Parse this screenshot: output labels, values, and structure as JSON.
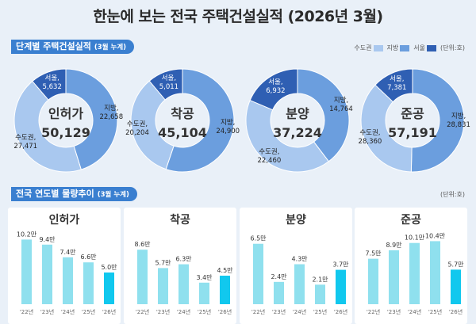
{
  "title": "한눈에 보는 전국 주택건설실적  (2026년 3월)",
  "section1": {
    "label": "단계별 주택건설실적",
    "sub": "(3월 누계)"
  },
  "section2": {
    "label": "전국 연도별 물량추이",
    "sub": "(3월 누계)"
  },
  "legend": [
    {
      "label": "수도권",
      "color": "#a9c8ef"
    },
    {
      "label": "지방",
      "color": "#6b9ede"
    },
    {
      "label": "서울",
      "color": "#2f5fb3"
    }
  ],
  "unit1": "(단위:호)",
  "unit2": "(단위:호)",
  "colors": {
    "capital": "#a9c8ef",
    "region": "#6b9ede",
    "seoul": "#2f5fb3",
    "bar": "#8fe0ee",
    "bar_last": "#11c8ee"
  },
  "chart_data": [
    {
      "type": "pie",
      "title": "인허가",
      "total": "50,129",
      "slices": [
        {
          "name": "수도권",
          "value": 27471,
          "label": "27,471"
        },
        {
          "name": "지방",
          "value": 22658,
          "label": "22,658"
        },
        {
          "name": "서울",
          "value": 5632,
          "label": "5,632"
        }
      ]
    },
    {
      "type": "pie",
      "title": "착공",
      "total": "45,104",
      "slices": [
        {
          "name": "수도권",
          "value": 20204,
          "label": "20,204"
        },
        {
          "name": "지방",
          "value": 24900,
          "label": "24,900"
        },
        {
          "name": "서울",
          "value": 5011,
          "label": "5,011"
        }
      ]
    },
    {
      "type": "pie",
      "title": "분양",
      "total": "37,224",
      "slices": [
        {
          "name": "수도권",
          "value": 22460,
          "label": "22,460"
        },
        {
          "name": "지방",
          "value": 14764,
          "label": "14,764"
        },
        {
          "name": "서울",
          "value": 6932,
          "label": "6,932"
        }
      ]
    },
    {
      "type": "pie",
      "title": "준공",
      "total": "57,191",
      "slices": [
        {
          "name": "수도권",
          "value": 28360,
          "label": "28,360"
        },
        {
          "name": "지방",
          "value": 28831,
          "label": "28,831"
        },
        {
          "name": "서울",
          "value": 7381,
          "label": "7,381"
        }
      ]
    },
    {
      "type": "bar",
      "title": "인허가",
      "categories": [
        "'22년",
        "'23년",
        "'24년",
        "'25년",
        "'26년"
      ],
      "values": [
        10.2,
        9.4,
        7.4,
        6.6,
        5.0
      ],
      "labels": [
        "10.2만",
        "9.4만",
        "7.4만",
        "6.6만",
        "5.0만"
      ],
      "ylim": [
        0,
        11
      ]
    },
    {
      "type": "bar",
      "title": "착공",
      "categories": [
        "'22년",
        "'23년",
        "'24년",
        "'25년",
        "'26년"
      ],
      "values": [
        8.6,
        5.7,
        6.3,
        3.4,
        4.5
      ],
      "labels": [
        "8.6만",
        "5.7만",
        "6.3만",
        "3.4만",
        "4.5만"
      ],
      "ylim": [
        0,
        11
      ]
    },
    {
      "type": "bar",
      "title": "분양",
      "categories": [
        "'22년",
        "'23년",
        "'24년",
        "'25년",
        "'26년"
      ],
      "values": [
        6.5,
        2.4,
        4.3,
        2.1,
        3.7
      ],
      "labels": [
        "6.5만",
        "2.4만",
        "4.3만",
        "2.1만",
        "3.7만"
      ],
      "ylim": [
        0,
        7.5
      ]
    },
    {
      "type": "bar",
      "title": "준공",
      "categories": [
        "'22년",
        "'23년",
        "'24년",
        "'25년",
        "'26년"
      ],
      "values": [
        7.5,
        8.9,
        10.1,
        10.4,
        5.7
      ],
      "labels": [
        "7.5만",
        "8.9만",
        "10.1만",
        "10.4만",
        "5.7만"
      ],
      "ylim": [
        0,
        11.5
      ]
    }
  ]
}
